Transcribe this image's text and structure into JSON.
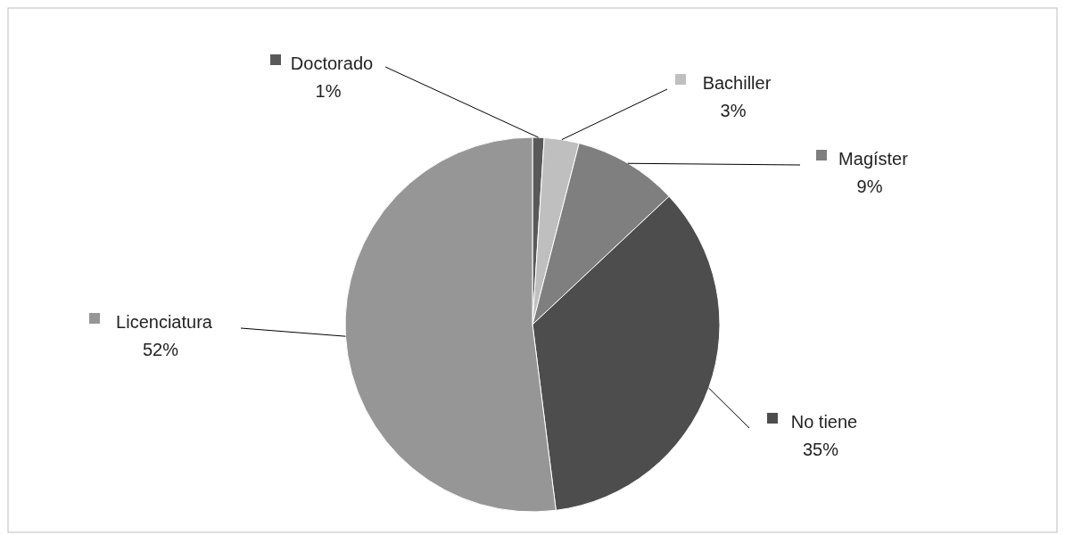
{
  "chart_data": {
    "type": "pie",
    "categories": [
      "Doctorado",
      "Bachiller",
      "Magíster",
      "No tiene",
      "Licenciatura"
    ],
    "values": [
      1,
      3,
      9,
      35,
      52
    ],
    "colors": [
      "#595959",
      "#bfbfbf",
      "#7f7f7f",
      "#4d4d4d",
      "#969696"
    ],
    "value_labels": [
      "1%",
      "3%",
      "9%",
      "35%",
      "52%"
    ],
    "legend": "top"
  }
}
